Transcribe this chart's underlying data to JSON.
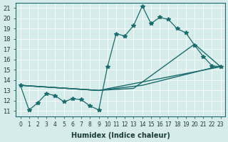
{
  "xlabel": "Humidex (Indice chaleur)",
  "ylabel": "",
  "bg_color": "#d6ecea",
  "line_color": "#1a6b6b",
  "xlim": [
    -0.5,
    23.5
  ],
  "ylim": [
    10.5,
    21.5
  ],
  "yticks": [
    11,
    12,
    13,
    14,
    15,
    16,
    17,
    18,
    19,
    20,
    21
  ],
  "xticks": [
    0,
    1,
    2,
    3,
    4,
    5,
    6,
    7,
    8,
    9,
    10,
    11,
    12,
    13,
    14,
    15,
    16,
    17,
    18,
    19,
    20,
    21,
    22,
    23
  ],
  "line1_x": [
    0,
    1,
    2,
    3,
    4,
    5,
    6,
    7,
    8,
    9,
    10,
    11,
    12,
    13,
    14,
    15,
    16,
    17,
    18,
    19,
    20,
    21,
    22,
    23
  ],
  "line1_y": [
    13.5,
    11.1,
    11.8,
    12.7,
    12.5,
    11.9,
    12.2,
    12.1,
    11.5,
    11.1,
    15.3,
    18.5,
    18.3,
    19.3,
    21.2,
    19.5,
    20.1,
    19.9,
    19.0,
    18.6,
    17.4,
    16.3,
    15.4,
    15.3
  ],
  "line2_x": [
    0,
    9,
    13,
    20,
    23
  ],
  "line2_y": [
    13.5,
    13.0,
    13.2,
    17.5,
    15.3
  ],
  "line3_x": [
    0,
    9,
    23
  ],
  "line3_y": [
    13.5,
    13.0,
    15.3
  ],
  "line4_x": [
    0,
    9,
    14,
    23
  ],
  "line4_y": [
    13.5,
    13.0,
    13.5,
    15.4
  ]
}
